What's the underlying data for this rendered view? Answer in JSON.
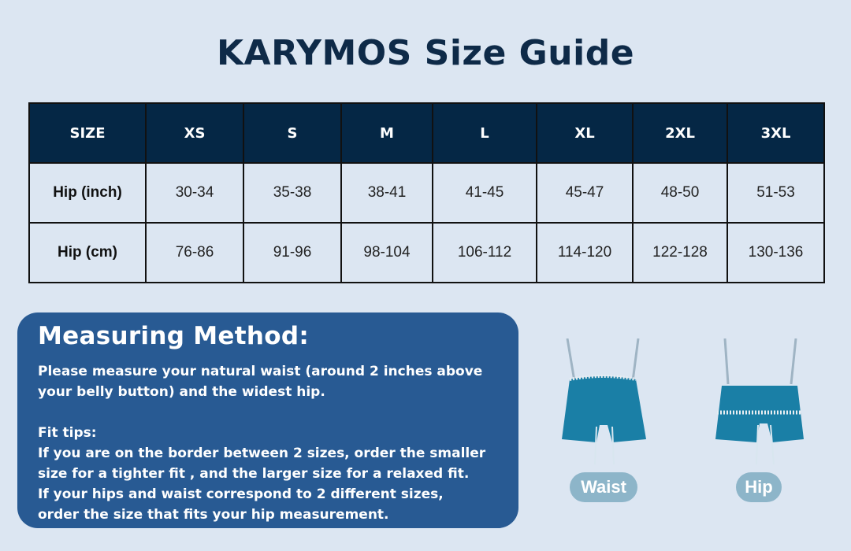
{
  "title": "KARYMOS Size Guide",
  "table": {
    "headers": [
      "SIZE",
      "XS",
      "S",
      "M",
      "L",
      "XL",
      "2XL",
      "3XL"
    ],
    "rows": [
      {
        "label": "Hip (inch)",
        "values": [
          "30-34",
          "35-38",
          "38-41",
          "41-45",
          "45-47",
          "48-50",
          "51-53"
        ]
      },
      {
        "label": "Hip (cm)",
        "values": [
          "76-86",
          "91-96",
          "98-104",
          "106-112",
          "114-120",
          "122-128",
          "130-136"
        ]
      }
    ]
  },
  "method": {
    "heading": "Measuring Method:",
    "line1": "Please measure your natural waist (around 2 inches above",
    "line2": "your belly button) and the widest hip.",
    "tips_heading": "Fit tips:",
    "tip1a": "If you are on the border between 2 sizes, order the smaller",
    "tip1b": "size for a tighter fit , and the larger size for a relaxed fit.",
    "tip2a": "If your hips and waist correspond to 2 different sizes,",
    "tip2b": "order the size that fits your hip measurement."
  },
  "figures": {
    "waist_label": "Waist",
    "hip_label": "Hip",
    "short_color": "#1a7fa6"
  },
  "colors": {
    "header_bg": "#052745",
    "panel_bg": "#285a93",
    "page_bg": "#dce6f2"
  }
}
